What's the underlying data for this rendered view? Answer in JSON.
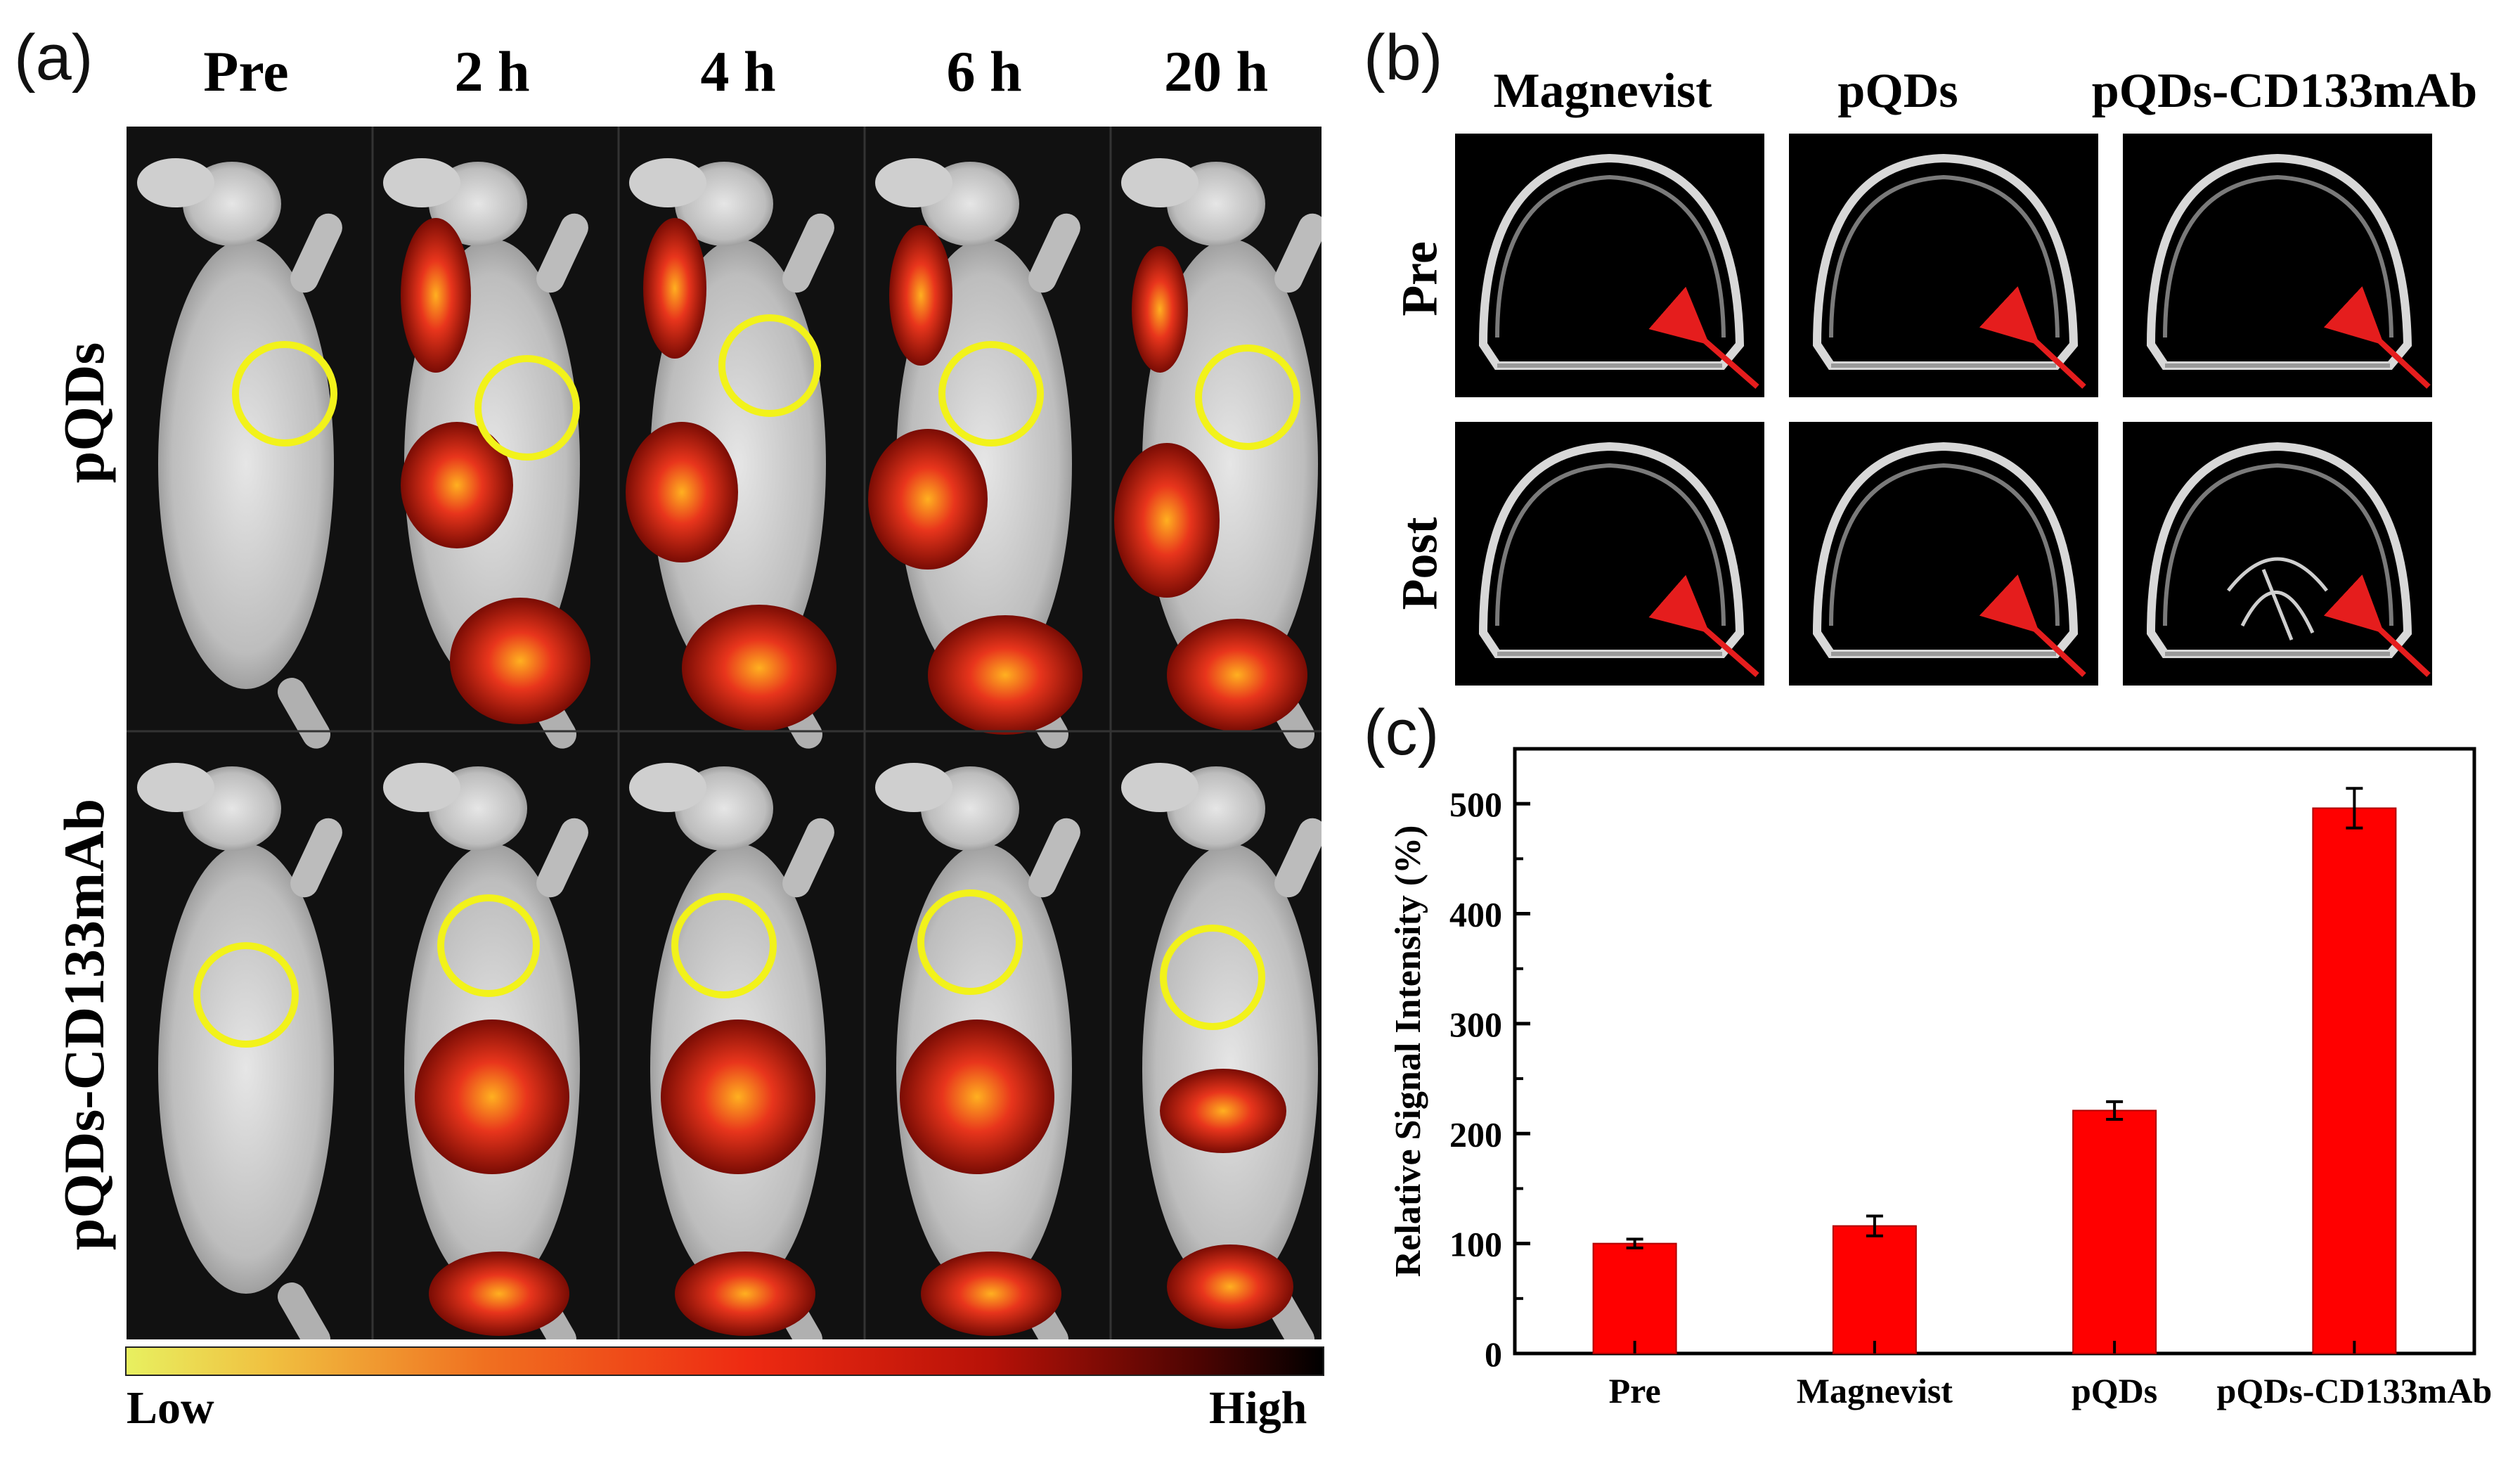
{
  "panel_labels": {
    "a": "(a)",
    "b": "(b)",
    "c": "(c)"
  },
  "panel_a": {
    "time_points": [
      "Pre",
      "2 h",
      "4 h",
      "6 h",
      "20 h"
    ],
    "rows": [
      "pQDs",
      "pQDs-CD133mAb"
    ],
    "colorbar": {
      "low": "Low",
      "high": "High"
    },
    "circle_color": "#f2f21a",
    "signal_color": "#e8351c"
  },
  "panel_b": {
    "columns": [
      "Magnevist",
      "pQDs",
      "pQDs-CD133mAb"
    ],
    "rows": [
      "Pre",
      "Post"
    ],
    "arrow_color": "#e51d1d"
  },
  "chart_data": {
    "type": "bar",
    "categories": [
      "Pre",
      "Magnevist",
      "pQDs",
      "pQDs-CD133mAb"
    ],
    "values": [
      100,
      116,
      221,
      496
    ],
    "errors": [
      4,
      9,
      8,
      18
    ],
    "ylabel": "Relative Signal Intensity (%)",
    "xlabel": "",
    "ylim": [
      0,
      550
    ],
    "yticks": [
      0,
      100,
      200,
      300,
      400,
      500
    ],
    "bar_color": "#ff0000",
    "grid": false
  }
}
